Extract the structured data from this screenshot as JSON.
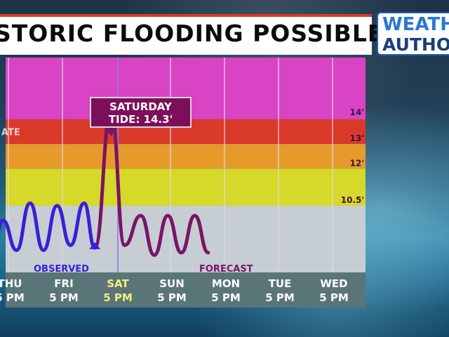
{
  "title": "STORIC FLOODING POSSIBLE",
  "logo": {
    "line1": "WEATH",
    "line2": "AUTHOR"
  },
  "callout": {
    "line1": "SATURDAY",
    "line2": "TIDE: 14.3'"
  },
  "colors": {
    "major": "#d844c4",
    "moderate": "#d93a2a",
    "minor": "#e79a2c",
    "action": "#d6d82a",
    "normal": "#c6ced4",
    "observed": "#3a1fd6",
    "forecast": "#7a1466",
    "axis_band": "#5a7578"
  },
  "chart_data": {
    "type": "line",
    "x": [
      "THU 5 PM",
      "FRI 5 PM",
      "SAT 5 PM",
      "SUN 5 PM",
      "MON 5 PM",
      "TUE 5 PM",
      "WED 5 PM"
    ],
    "ylim": [
      7.8,
      16.5
    ],
    "thresholds": [
      {
        "label": "14'",
        "value": 14.0
      },
      {
        "label": "13'",
        "value": 13.0
      },
      {
        "label": "12'",
        "value": 12.0
      },
      {
        "label": "10.5'",
        "value": 10.5
      }
    ],
    "band_label": "ATE",
    "series": [
      {
        "name": "OBSERVED",
        "points": [
          [
            -0.3,
            8.7
          ],
          [
            -0.1,
            9.9
          ],
          [
            0.15,
            8.7
          ],
          [
            0.4,
            10.6
          ],
          [
            0.65,
            8.7
          ],
          [
            0.9,
            10.5
          ],
          [
            1.15,
            8.9
          ],
          [
            1.4,
            10.6
          ],
          [
            1.6,
            8.8
          ]
        ]
      },
      {
        "name": "FORECAST",
        "points": [
          [
            1.6,
            8.8
          ],
          [
            1.9,
            14.3
          ],
          [
            2.15,
            8.9
          ],
          [
            2.45,
            10.1
          ],
          [
            2.7,
            8.5
          ],
          [
            2.95,
            10.1
          ],
          [
            3.2,
            8.6
          ],
          [
            3.45,
            10.1
          ],
          [
            3.7,
            8.6
          ]
        ]
      }
    ]
  }
}
